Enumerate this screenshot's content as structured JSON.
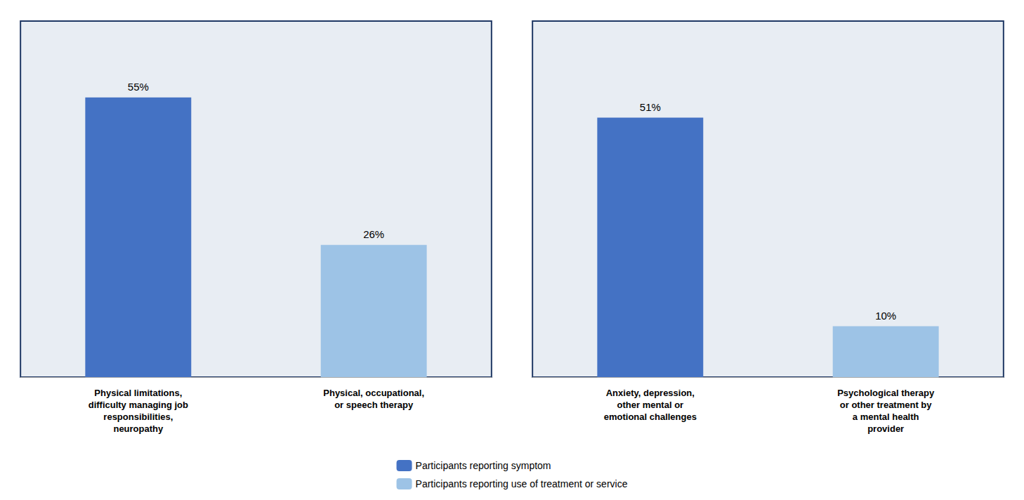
{
  "chart_data": [
    {
      "type": "bar",
      "categories": [
        "Physical limitations,\ndifficulty managing job\nresponsibilities,\nneuropathy",
        "Physical, occupational,\nor speech therapy"
      ],
      "series": [
        {
          "name": "Participants reporting symptom",
          "color": "#4472C4",
          "values": [
            55,
            null
          ],
          "value_labels": [
            "55%",
            null
          ]
        },
        {
          "name": "Participants reporting use of treatment or service",
          "color": "#9DC3E6",
          "values": [
            null,
            26
          ],
          "value_labels": [
            null,
            "26%"
          ]
        }
      ],
      "ylim": [
        0,
        70
      ],
      "grid": false,
      "legend": "bottom",
      "data_labels": true,
      "tick_labels": "x"
    },
    {
      "type": "bar",
      "categories": [
        "Anxiety, depression,\nother mental or\nemotional challenges",
        "Psychological therapy\nor other treatment by\na mental health\nprovider"
      ],
      "series": [
        {
          "name": "Participants reporting symptom",
          "color": "#4472C4",
          "values": [
            51,
            null
          ],
          "value_labels": [
            "51%",
            null
          ]
        },
        {
          "name": "Participants reporting use of treatment or service",
          "color": "#9DC3E6",
          "values": [
            null,
            10
          ],
          "value_labels": [
            null,
            "10%"
          ]
        }
      ],
      "ylim": [
        0,
        70
      ],
      "grid": false,
      "legend": "bottom",
      "data_labels": true,
      "tick_labels": "x"
    }
  ]
}
